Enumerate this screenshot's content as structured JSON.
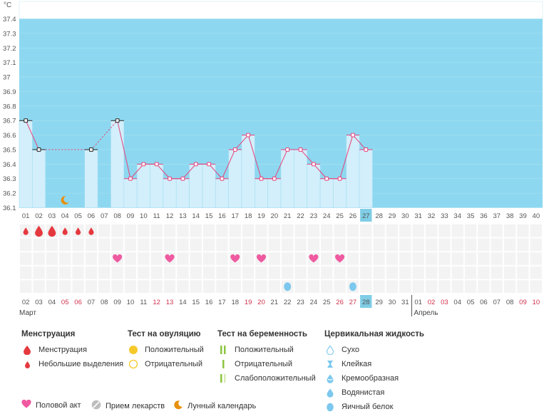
{
  "chart_data": {
    "type": "bar",
    "unit_label": "°C",
    "ylim": [
      36.1,
      37.4
    ],
    "yticks": [
      "37.4",
      "37.3",
      "37.2",
      "37.1",
      "37",
      "36.9",
      "36.8",
      "36.7",
      "36.6",
      "36.5",
      "36.4",
      "36.3",
      "36.2",
      "36.1"
    ],
    "cycle_days": [
      "01",
      "02",
      "03",
      "04",
      "05",
      "06",
      "07",
      "08",
      "09",
      "10",
      "11",
      "12",
      "13",
      "14",
      "15",
      "16",
      "17",
      "18",
      "19",
      "20",
      "21",
      "22",
      "23",
      "24",
      "25",
      "26",
      "27",
      "28",
      "29",
      "30",
      "31",
      "32",
      "33",
      "34",
      "35",
      "36",
      "37",
      "38",
      "39",
      "40"
    ],
    "current_day_index": 26,
    "temperatures": [
      36.7,
      36.5,
      null,
      null,
      null,
      36.5,
      null,
      36.7,
      36.3,
      36.4,
      36.4,
      36.3,
      36.3,
      36.4,
      36.4,
      36.3,
      36.5,
      36.6,
      36.3,
      36.3,
      36.5,
      36.5,
      36.4,
      36.3,
      36.3,
      36.6,
      36.5
    ],
    "point_style": [
      "black",
      "black",
      "",
      "",
      "",
      "black",
      "",
      "black",
      "pink",
      "pink",
      "pink",
      "pink",
      "pink",
      "pink",
      "pink",
      "pink",
      "pink",
      "pink",
      "pink",
      "pink",
      "pink",
      "pink",
      "pink",
      "pink",
      "pink",
      "pink",
      "pink"
    ],
    "menstruation": [
      1,
      2,
      2,
      1,
      1,
      1
    ],
    "moon_day_index": 3,
    "intercourse_day_indices": [
      7,
      11,
      16,
      18,
      22,
      24
    ],
    "cervical_fluid_day_indices": [
      20,
      25
    ],
    "dates": [
      {
        "d": "02",
        "red": false
      },
      {
        "d": "03",
        "red": false
      },
      {
        "d": "04",
        "red": false
      },
      {
        "d": "05",
        "red": true
      },
      {
        "d": "06",
        "red": true
      },
      {
        "d": "07",
        "red": false
      },
      {
        "d": "08",
        "red": false
      },
      {
        "d": "09",
        "red": false
      },
      {
        "d": "10",
        "red": false
      },
      {
        "d": "11",
        "red": false
      },
      {
        "d": "12",
        "red": true
      },
      {
        "d": "13",
        "red": true
      },
      {
        "d": "14",
        "red": false
      },
      {
        "d": "15",
        "red": false
      },
      {
        "d": "16",
        "red": false
      },
      {
        "d": "17",
        "red": false
      },
      {
        "d": "18",
        "red": false
      },
      {
        "d": "19",
        "red": true
      },
      {
        "d": "20",
        "red": true
      },
      {
        "d": "21",
        "red": false
      },
      {
        "d": "22",
        "red": false
      },
      {
        "d": "23",
        "red": false
      },
      {
        "d": "24",
        "red": false
      },
      {
        "d": "25",
        "red": false
      },
      {
        "d": "26",
        "red": true
      },
      {
        "d": "27",
        "red": true
      },
      {
        "d": "28",
        "red": false
      },
      {
        "d": "29",
        "red": false
      },
      {
        "d": "30",
        "red": false
      },
      {
        "d": "31",
        "red": false
      },
      {
        "d": "01",
        "red": false
      },
      {
        "d": "02",
        "red": true
      },
      {
        "d": "03",
        "red": true
      },
      {
        "d": "04",
        "red": false
      },
      {
        "d": "05",
        "red": false
      },
      {
        "d": "06",
        "red": false
      },
      {
        "d": "07",
        "red": false
      },
      {
        "d": "08",
        "red": false
      },
      {
        "d": "09",
        "red": true
      },
      {
        "d": "10",
        "red": true
      }
    ],
    "month_labels": [
      {
        "label": "Март",
        "start_index": 0
      },
      {
        "label": "Апрель",
        "start_index": 30
      }
    ]
  },
  "colors": {
    "sky": "#8dd8f0",
    "bar": "#d2effb",
    "bar_border": "#a5dcf2",
    "line": "#e8407a",
    "current": "#7fcde6",
    "red_text": "#d0314b",
    "drop": "#e5393f",
    "heart": "#ef5aa0",
    "moon": "#e8900e",
    "fluid": "#7cc8ee"
  },
  "legend": {
    "menstruation": {
      "title": "Менструация",
      "items": [
        {
          "label": "Менструация",
          "icon": "blood-drop-icon"
        },
        {
          "label": "Небольшие выделения",
          "icon": "small-drop-icon"
        }
      ]
    },
    "ovulation": {
      "title": "Тест на овуляцию",
      "items": [
        {
          "label": "Положительный",
          "icon": "filled-circle-icon"
        },
        {
          "label": "Отрицательный",
          "icon": "outline-circle-icon"
        }
      ]
    },
    "pregnancy": {
      "title": "Тест на беременность",
      "items": [
        {
          "label": "Положительный",
          "icon": "double-bar-icon"
        },
        {
          "label": "Отрицательный",
          "icon": "single-bar-icon"
        },
        {
          "label": "Слабоположительный",
          "icon": "faint-bar-icon"
        }
      ]
    },
    "cervical": {
      "title": "Цервикальная жидкость",
      "items": [
        {
          "label": "Сухо",
          "icon": "dry-drop-icon"
        },
        {
          "label": "Клейкая",
          "icon": "sticky-icon"
        },
        {
          "label": "Кремообразная",
          "icon": "creamy-drop-icon"
        },
        {
          "label": "Водянистая",
          "icon": "watery-drop-icon"
        },
        {
          "label": "Яичный белок",
          "icon": "egg-white-icon"
        }
      ]
    },
    "bottom": [
      {
        "label": "Половой акт",
        "icon": "heart-icon"
      },
      {
        "label": "Прием лекарств",
        "icon": "pill-icon"
      },
      {
        "label": "Лунный календарь",
        "icon": "moon-icon"
      }
    ]
  }
}
